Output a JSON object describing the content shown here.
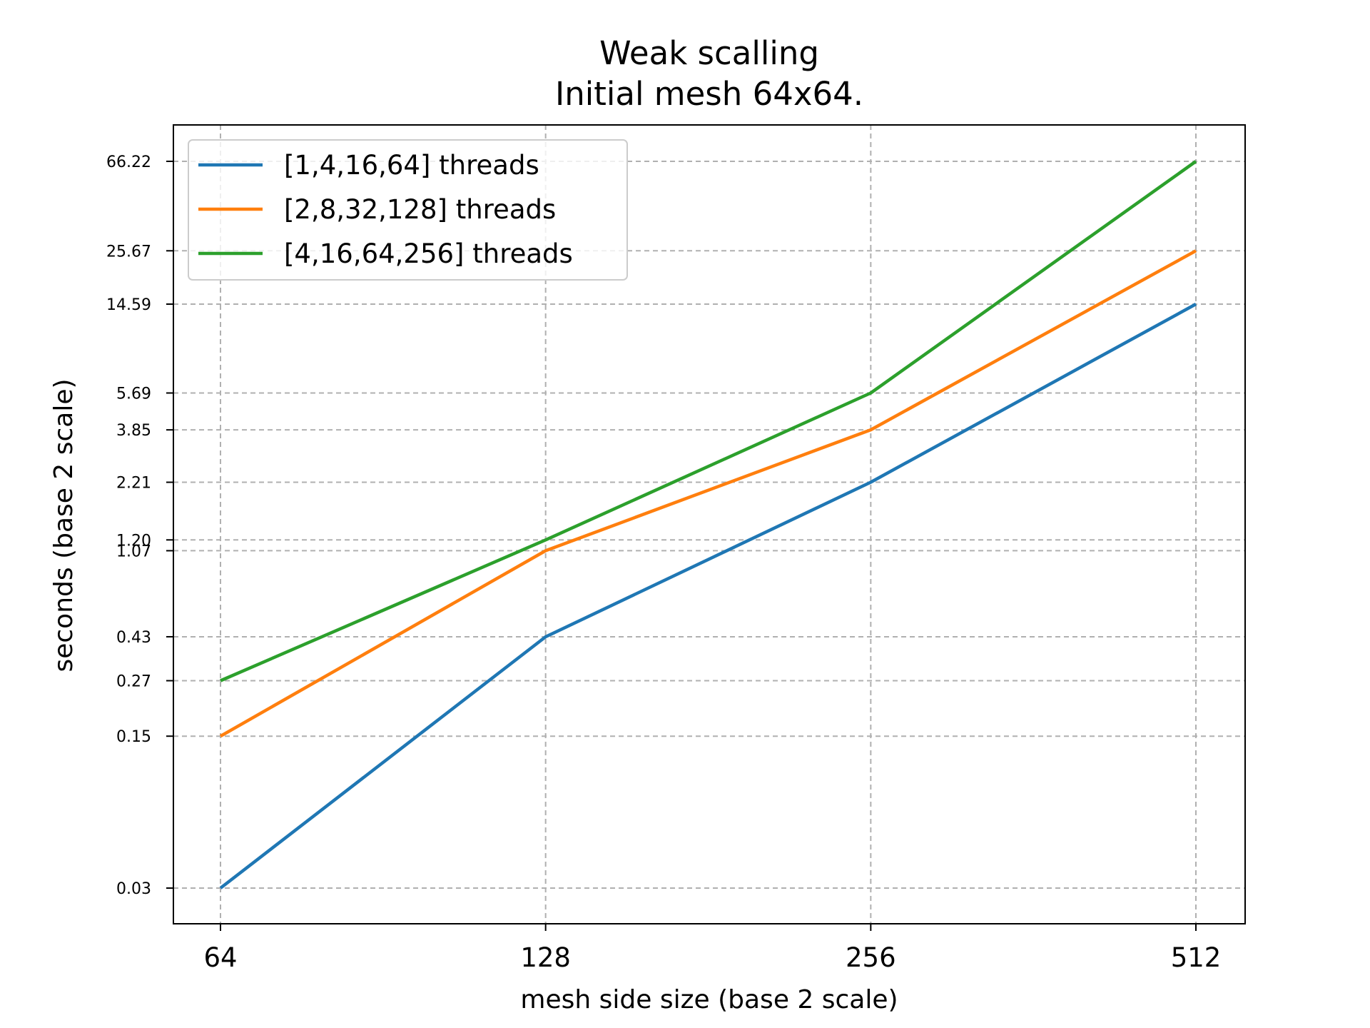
{
  "chart_data": {
    "type": "line",
    "title_line1": "Weak scalling",
    "title_line2": "Initial mesh 64x64.",
    "xlabel": "mesh side size (base 2 scale)",
    "ylabel": "seconds (base 2 scale)",
    "xscale": "log2",
    "yscale": "log2",
    "grid": true,
    "legend_position": "top-left",
    "x": [
      64,
      128,
      256,
      512
    ],
    "x_tick_labels": [
      "64",
      "128",
      "256",
      "512"
    ],
    "y_ticks": [
      0.03,
      0.15,
      0.27,
      0.43,
      1.07,
      1.2,
      2.21,
      3.85,
      5.69,
      14.59,
      25.67,
      66.22
    ],
    "y_tick_labels": [
      "0.03",
      "0.15",
      "0.27",
      "0.43",
      "1.07",
      "1.20",
      "2.21",
      "3.85",
      "5.69",
      "14.59",
      "25.67",
      "66.22"
    ],
    "series": [
      {
        "name": "[1,4,16,64] threads",
        "color": "#1f77b4",
        "values": [
          0.03,
          0.43,
          2.21,
          14.59
        ]
      },
      {
        "name": "[2,8,32,128] threads",
        "color": "#ff7f0e",
        "values": [
          0.15,
          1.07,
          3.85,
          25.67
        ]
      },
      {
        "name": "[4,16,64,256] threads",
        "color": "#2ca02c",
        "values": [
          0.27,
          1.2,
          5.69,
          66.22
        ]
      }
    ]
  }
}
